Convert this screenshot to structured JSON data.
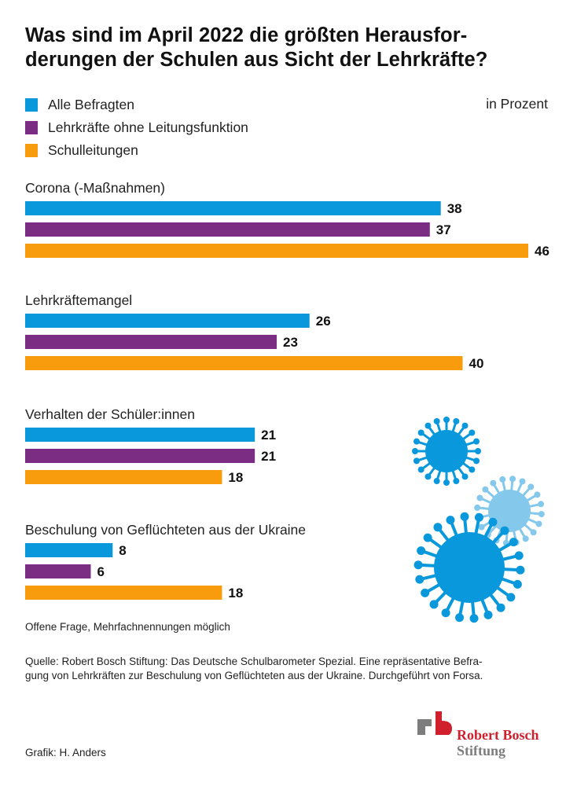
{
  "title": "Was sind im April 2022 die größten Herausfor-derungen der Schulen aus Sicht der Lehrkräfte?",
  "title_line1": "Was sind im April 2022 die größten Herausfor-",
  "title_line2": "derungen der Schulen aus Sicht der Lehrkräfte?",
  "unit_label": "in Prozent",
  "legend": [
    {
      "label": "Alle Befragten",
      "color": "#0a98dc"
    },
    {
      "label": "Lehrkräfte ohne Leitungsfunktion",
      "color": "#7b2d84"
    },
    {
      "label": "Schulleitungen",
      "color": "#f89c0e"
    }
  ],
  "note": "Offene Frage, Mehrfachnennungen möglich",
  "source": "Quelle: Robert Bosch Stiftung: Das Deutsche Schulbarometer Spezial. Eine repräsentative Befra-gung von Lehrkräften zur Beschulung von Geflüchteten aus der Ukraine. Durchgeführt von Forsa.",
  "source_line1": "Quelle: Robert Bosch Stiftung: Das Deutsche Schulbarometer Spezial. Eine repräsentative Befra-",
  "source_line2": "gung von Lehrkräften zur Beschulung von Geflüchteten aus der Ukraine. Durchgeführt von Forsa.",
  "credit": "Grafik: H. Anders",
  "logo": {
    "line1": "Robert Bosch",
    "line2": "Stiftung",
    "red": "#d0202e",
    "gray": "#7d7d7d"
  },
  "illustration": {
    "name": "coronavirus-illustration",
    "colors": [
      "#0a98dc",
      "#84c8ec"
    ]
  },
  "chart_data": {
    "type": "bar",
    "orientation": "horizontal",
    "title": "Was sind im April 2022 die größten Herausforderungen der Schulen aus Sicht der Lehrkräfte?",
    "xlabel": "",
    "ylabel": "",
    "unit": "in Prozent",
    "categories": [
      "Corona (-Maßnahmen)",
      "Lehrkräftemangel",
      "Verhalten der Schüler:innen",
      "Beschulung von Geflüchteten aus der Ukraine"
    ],
    "series": [
      {
        "name": "Alle Befragten",
        "color": "#0a98dc",
        "values": [
          38,
          26,
          21,
          8
        ]
      },
      {
        "name": "Lehrkräfte ohne Leitungsfunktion",
        "color": "#7b2d84",
        "values": [
          37,
          23,
          21,
          6
        ]
      },
      {
        "name": "Schulleitungen",
        "color": "#f89c0e",
        "values": [
          46,
          40,
          18,
          18
        ]
      }
    ],
    "xlim": [
      0,
      46
    ],
    "grid": false,
    "legend_position": "top-left",
    "data_labels": true
  }
}
